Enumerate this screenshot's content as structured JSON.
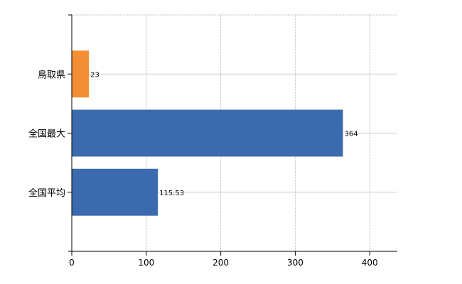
{
  "chart_data": {
    "type": "bar",
    "orientation": "horizontal",
    "categories": [
      "鳥取県",
      "全国最大",
      "全国平均"
    ],
    "values": [
      23,
      364,
      115.53
    ],
    "value_labels": [
      "23",
      "364",
      "115.53"
    ],
    "colors": [
      "#f28f34",
      "#3b6aae",
      "#3b6aae"
    ],
    "xlim": [
      0,
      437
    ],
    "xticks": [
      0,
      100,
      200,
      300,
      400
    ],
    "xtick_labels": [
      "0",
      "100",
      "200",
      "300",
      "400"
    ],
    "grid": true,
    "grid_color": "#cccccc",
    "title": "",
    "xlabel": "",
    "ylabel": ""
  }
}
